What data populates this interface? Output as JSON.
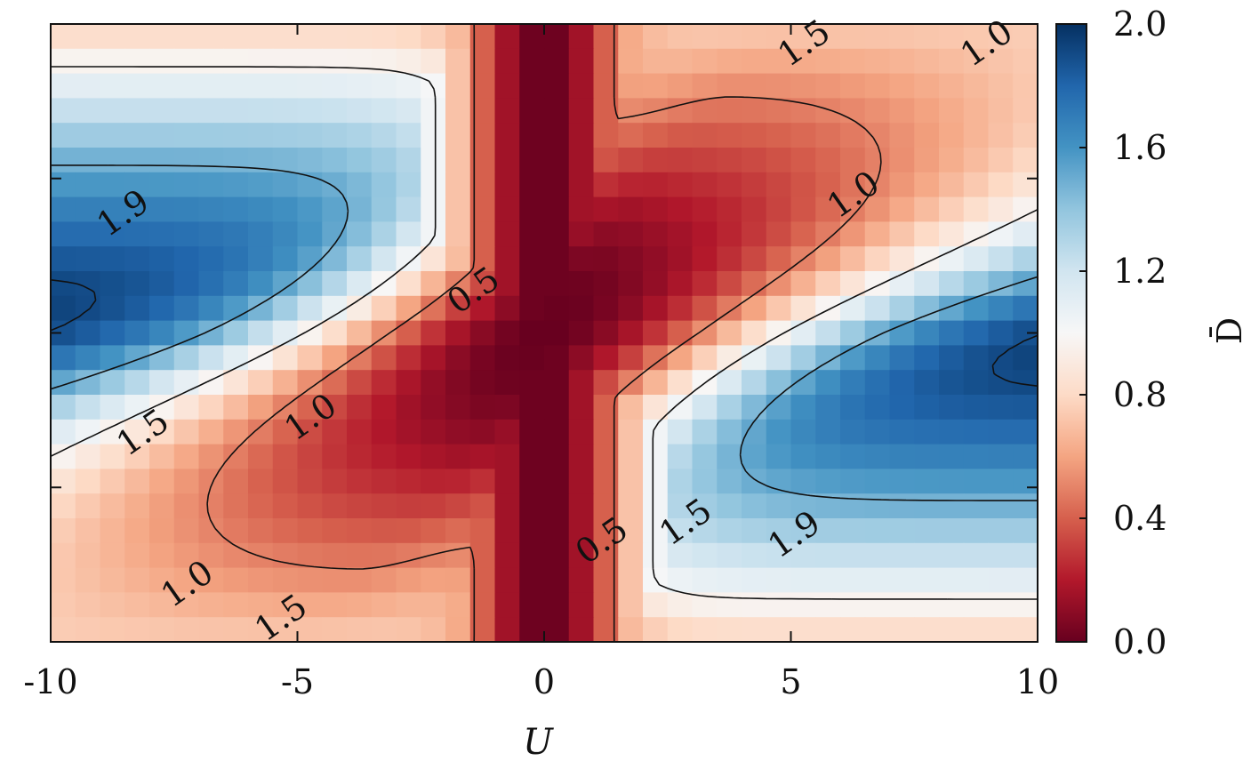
{
  "chart_data": {
    "type": "heatmap",
    "title": "",
    "xlabel": "U",
    "ylabel": "",
    "xlim": [
      -10,
      10
    ],
    "x_ticks": [
      "-10",
      "-5",
      "0",
      "5",
      "10"
    ],
    "colorbar": {
      "label": "D̄",
      "range": [
        0.0,
        2.0
      ],
      "ticks": [
        "0.0",
        "0.4",
        "0.8",
        "1.2",
        "1.6",
        "2.0"
      ],
      "colormap": "RdBu",
      "colors": {
        "low": "#67001f",
        "mid": "#f7f7f7",
        "high": "#053061"
      }
    },
    "grid_size": {
      "cols": 40,
      "rows": 25
    },
    "description_of_field": "cells valued 0-2 over U in [-10,10] (x) and a vertical parameter v in [-1,1] (y)",
    "contour_levels": [
      0.5,
      1.0,
      1.5,
      1.9
    ],
    "contour_labels": [
      {
        "text": "1.9",
        "u": -8.5,
        "v": 0.38
      },
      {
        "text": "1.5",
        "u": -8.1,
        "v": -0.33
      },
      {
        "text": "1.0",
        "u": -4.7,
        "v": -0.28
      },
      {
        "text": "1.0",
        "u": -7.2,
        "v": -0.82
      },
      {
        "text": "1.5",
        "u": -5.3,
        "v": -0.93
      },
      {
        "text": "0.5",
        "u": -1.4,
        "v": 0.13
      },
      {
        "text": "0.5",
        "u": 1.2,
        "v": -0.68
      },
      {
        "text": "1.5",
        "u": 2.9,
        "v": -0.62
      },
      {
        "text": "1.9",
        "u": 5.1,
        "v": -0.66
      },
      {
        "text": "1.0",
        "u": 6.3,
        "v": 0.44
      },
      {
        "text": "1.5",
        "u": 5.3,
        "v": 0.93
      },
      {
        "text": "1.0",
        "u": 9.0,
        "v": 0.93
      }
    ]
  }
}
